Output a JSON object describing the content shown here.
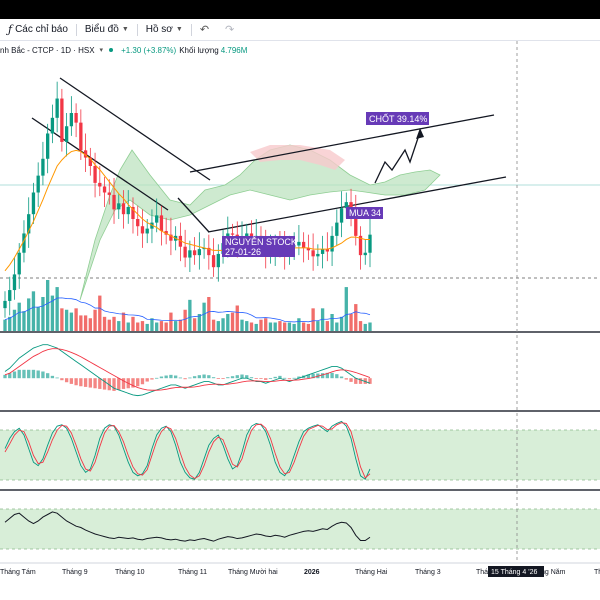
{
  "toolbar": {
    "indicators_label": "Các chỉ báo",
    "chart_label": "Biểu đồ",
    "profile_label": "Hồ sơ"
  },
  "legend": {
    "symbol": "nh Bắc - CTCP · 1D · HSX",
    "change": "+1.30 (+3.87%)",
    "volume_label": "Khối lượng",
    "volume_value": "4.796M"
  },
  "chart_data": {
    "type": "candlestick",
    "x_labels": [
      "Tháng Tám",
      "Tháng 9",
      "Tháng 10",
      "Tháng 11",
      "Tháng Mười hai",
      "2026",
      "Tháng Hai",
      "Tháng 3",
      "Thá",
      "ng Năm",
      "Th"
    ],
    "crosshair_date": "15 Tháng 4 '26",
    "annotations": {
      "take_profit": "CHỐT 39.14%",
      "buy": "MUA 34",
      "author": "NGUYỄN STOCK",
      "date": "27-01-26"
    },
    "colors": {
      "up": "#089981",
      "down": "#f23645",
      "ma": "#ff9800",
      "annotation_bg": "#673ab7",
      "cloud": "#a5d6a7",
      "band": "#d8eed8"
    },
    "price_panel": {
      "closes": [
        28.0,
        28.9,
        30.2,
        32.0,
        33.6,
        35.2,
        37.0,
        38.4,
        39.8,
        41.9,
        43.2,
        44.8,
        41.2,
        42.5,
        43.6,
        42.8,
        40.5,
        39.9,
        39.2,
        37.8,
        37.5,
        37.0,
        36.8,
        35.6,
        36.1,
        35.2,
        35.8,
        34.8,
        34.2,
        33.6,
        34.0,
        34.5,
        35.1,
        33.8,
        33.5,
        33.0,
        33.4,
        32.5,
        31.6,
        32.2,
        31.8,
        32.3,
        32.4,
        31.8,
        30.8,
        31.9,
        32.8,
        33.6,
        33.5,
        32.8,
        33.2,
        33.6,
        33.0,
        33.4,
        32.8,
        31.9,
        32.1,
        32.7,
        32.4,
        31.8,
        32.6,
        32.6,
        32.9,
        32.4,
        32.2,
        31.7,
        31.9,
        32.3,
        32.1,
        33.4,
        34.5,
        35.7,
        36.2,
        35.4,
        33.4,
        31.8,
        32.0,
        33.5
      ],
      "ylim": [
        26,
        48
      ],
      "ma": [
        30.5,
        31.0,
        31.6,
        32.3,
        33.0,
        33.8,
        34.6,
        35.5,
        36.4,
        37.4,
        38.3,
        39.2,
        39.7,
        40.1,
        40.4,
        40.5,
        40.4,
        40.1,
        39.8,
        39.3,
        38.9,
        38.4,
        37.9,
        37.4,
        36.9,
        36.5,
        36.0,
        35.6,
        35.2,
        34.8,
        34.5,
        34.3,
        34.1,
        33.8,
        33.6,
        33.4,
        33.2,
        33.0,
        32.8,
        32.7,
        32.6,
        32.5,
        32.4,
        32.3,
        32.2,
        32.2,
        32.2,
        32.3,
        32.4,
        32.5,
        32.5,
        32.6,
        32.6,
        32.6,
        32.6,
        32.6,
        32.5,
        32.5,
        32.5,
        32.4,
        32.4,
        32.4,
        32.4,
        32.4,
        32.4,
        32.3,
        32.3,
        32.3,
        32.3,
        32.4,
        32.6,
        32.8,
        33.1,
        33.3,
        33.3,
        33.2,
        33.1,
        33.1
      ]
    },
    "volume_panel": {
      "values": [
        0.8,
        1.0,
        1.5,
        2.0,
        1.4,
        2.3,
        2.8,
        1.7,
        2.4,
        3.6,
        2.5,
        3.1,
        1.6,
        1.5,
        1.3,
        1.6,
        1.1,
        1.1,
        0.9,
        1.5,
        2.5,
        1.0,
        0.8,
        1.0,
        0.7,
        1.3,
        0.6,
        1.0,
        0.6,
        0.7,
        0.5,
        0.9,
        0.6,
        0.7,
        0.6,
        1.3,
        0.7,
        0.8,
        1.5,
        2.2,
        0.9,
        1.2,
        2.0,
        2.4,
        0.8,
        0.7,
        0.9,
        1.2,
        1.3,
        1.8,
        0.8,
        0.7,
        0.6,
        0.5,
        0.8,
        0.9,
        0.6,
        0.6,
        0.7,
        0.6,
        0.6,
        0.5,
        0.9,
        0.6,
        0.5,
        1.6,
        0.7,
        1.6,
        0.7,
        1.2,
        0.6,
        1.0,
        3.1,
        1.2,
        1.9,
        0.7,
        0.5,
        0.6
      ]
    },
    "macd_panel": {
      "macd": [
        0.2,
        0.3,
        0.45,
        0.6,
        0.7,
        0.8,
        0.9,
        0.95,
        1.0,
        1.0,
        0.95,
        0.9,
        0.8,
        0.7,
        0.6,
        0.5,
        0.4,
        0.3,
        0.2,
        0.1,
        0.0,
        -0.1,
        -0.2,
        -0.3,
        -0.35,
        -0.4,
        -0.45,
        -0.5,
        -0.52,
        -0.5,
        -0.45,
        -0.4,
        -0.35,
        -0.3,
        -0.25,
        -0.2,
        -0.2,
        -0.25,
        -0.3,
        -0.25,
        -0.2,
        -0.15,
        -0.1,
        -0.1,
        -0.15,
        -0.2,
        -0.2,
        -0.15,
        -0.1,
        -0.05,
        0.0,
        0.0,
        -0.05,
        -0.1,
        -0.1,
        -0.15,
        -0.1,
        -0.05,
        0.0,
        -0.05,
        -0.1,
        -0.05,
        0.0,
        0.05,
        0.1,
        0.15,
        0.2,
        0.25,
        0.3,
        0.35,
        0.35,
        0.3,
        0.2,
        0.1,
        0.0,
        -0.05,
        -0.1,
        -0.15
      ],
      "signal": [
        0.1,
        0.15,
        0.25,
        0.35,
        0.45,
        0.55,
        0.65,
        0.72,
        0.8,
        0.85,
        0.88,
        0.88,
        0.86,
        0.82,
        0.77,
        0.71,
        0.64,
        0.56,
        0.48,
        0.4,
        0.32,
        0.24,
        0.16,
        0.08,
        0.0,
        -0.08,
        -0.15,
        -0.22,
        -0.28,
        -0.32,
        -0.35,
        -0.36,
        -0.36,
        -0.35,
        -0.33,
        -0.3,
        -0.28,
        -0.27,
        -0.27,
        -0.27,
        -0.26,
        -0.24,
        -0.21,
        -0.19,
        -0.18,
        -0.18,
        -0.19,
        -0.18,
        -0.16,
        -0.14,
        -0.11,
        -0.09,
        -0.08,
        -0.08,
        -0.09,
        -0.1,
        -0.1,
        -0.09,
        -0.07,
        -0.06,
        -0.07,
        -0.06,
        -0.05,
        -0.03,
        -0.01,
        0.02,
        0.06,
        0.1,
        0.14,
        0.19,
        0.23,
        0.25,
        0.24,
        0.21,
        0.17,
        0.12,
        0.07,
        0.02
      ],
      "ylim": [
        -0.8,
        1.2
      ]
    },
    "stoch_panel": {
      "k": [
        55,
        70,
        80,
        85,
        75,
        55,
        35,
        30,
        40,
        60,
        78,
        88,
        90,
        85,
        70,
        50,
        30,
        20,
        25,
        45,
        70,
        85,
        90,
        88,
        75,
        55,
        35,
        20,
        15,
        18,
        30,
        55,
        75,
        85,
        88,
        80,
        60,
        35,
        20,
        12,
        10,
        20,
        40,
        60,
        70,
        75,
        60,
        40,
        25,
        30,
        50,
        75,
        88,
        92,
        90,
        80,
        60,
        35,
        20,
        15,
        25,
        45,
        65,
        80,
        85,
        88,
        90,
        85,
        80,
        88,
        92,
        95,
        88,
        70,
        40,
        15,
        10,
        25
      ],
      "d": [
        50,
        62,
        75,
        82,
        80,
        65,
        45,
        33,
        35,
        50,
        68,
        82,
        89,
        88,
        78,
        60,
        40,
        25,
        22,
        35,
        58,
        78,
        88,
        89,
        80,
        65,
        45,
        28,
        18,
        16,
        24,
        45,
        66,
        80,
        87,
        84,
        70,
        48,
        28,
        16,
        11,
        15,
        30,
        50,
        65,
        72,
        68,
        50,
        32,
        28,
        40,
        63,
        82,
        90,
        91,
        85,
        70,
        48,
        28,
        18,
        20,
        35,
        55,
        73,
        83,
        86,
        89,
        88,
        83,
        84,
        90,
        93,
        92,
        80,
        55,
        28,
        12,
        18
      ],
      "band": [
        20,
        80
      ],
      "ylim": [
        0,
        100
      ]
    },
    "rsi_panel": {
      "values": [
        58,
        64,
        70,
        72,
        66,
        60,
        56,
        60,
        66,
        70,
        74,
        72,
        66,
        60,
        56,
        52,
        50,
        46,
        43,
        40,
        38,
        36,
        34,
        33,
        35,
        34,
        33,
        34,
        32,
        31,
        33,
        34,
        35,
        34,
        32,
        31,
        32,
        30,
        29,
        31,
        30,
        32,
        33,
        31,
        29,
        32,
        34,
        36,
        35,
        33,
        34,
        36,
        38,
        40,
        39,
        37,
        36,
        38,
        37,
        35,
        38,
        40,
        42,
        44,
        45,
        44,
        46,
        48,
        47,
        52,
        56,
        58,
        57,
        50,
        38,
        30,
        30,
        35
      ],
      "band": [
        30,
        70
      ],
      "ylim": [
        0,
        100
      ]
    }
  }
}
